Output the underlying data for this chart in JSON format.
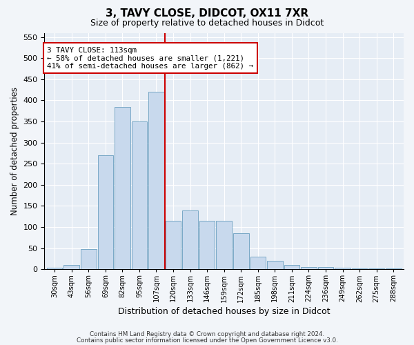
{
  "title1": "3, TAVY CLOSE, DIDCOT, OX11 7XR",
  "title2": "Size of property relative to detached houses in Didcot",
  "xlabel": "Distribution of detached houses by size in Didcot",
  "ylabel": "Number of detached properties",
  "categories": [
    "30sqm",
    "43sqm",
    "56sqm",
    "69sqm",
    "82sqm",
    "95sqm",
    "107sqm",
    "120sqm",
    "133sqm",
    "146sqm",
    "159sqm",
    "172sqm",
    "185sqm",
    "198sqm",
    "211sqm",
    "224sqm",
    "236sqm",
    "249sqm",
    "262sqm",
    "275sqm",
    "288sqm"
  ],
  "values": [
    4,
    10,
    48,
    270,
    385,
    350,
    420,
    115,
    140,
    115,
    115,
    85,
    30,
    20,
    10,
    5,
    5,
    4,
    2,
    2,
    2
  ],
  "bar_color": "#c8d9ed",
  "bar_edge_color": "#6a9fc0",
  "background_color": "#e6edf5",
  "grid_color": "#ffffff",
  "fig_background": "#f2f5f9",
  "vline_color": "#cc0000",
  "annotation_text": "3 TAVY CLOSE: 113sqm\n← 58% of detached houses are smaller (1,221)\n41% of semi-detached houses are larger (862) →",
  "annotation_box_color": "#ffffff",
  "annotation_box_edge": "#cc0000",
  "footer1": "Contains HM Land Registry data © Crown copyright and database right 2024.",
  "footer2": "Contains public sector information licensed under the Open Government Licence v3.0.",
  "ylim": [
    0,
    560
  ],
  "yticks": [
    0,
    50,
    100,
    150,
    200,
    250,
    300,
    350,
    400,
    450,
    500,
    550
  ]
}
